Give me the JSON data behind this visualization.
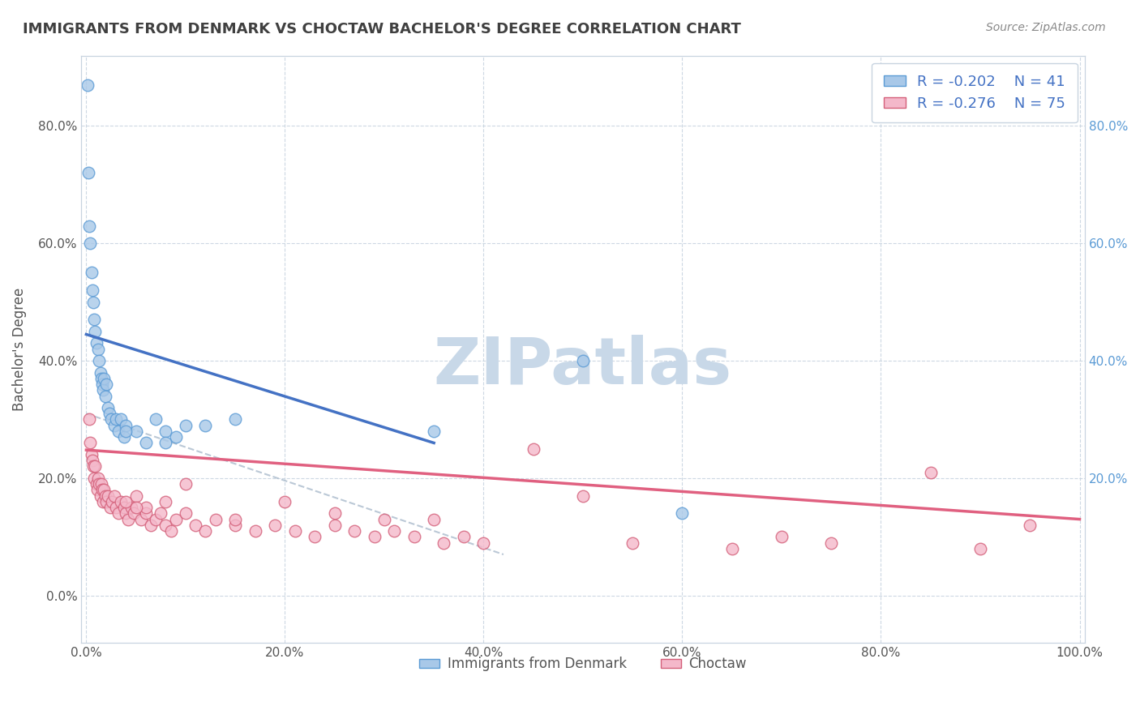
{
  "title": "IMMIGRANTS FROM DENMARK VS CHOCTAW BACHELOR'S DEGREE CORRELATION CHART",
  "source_text": "Source: ZipAtlas.com",
  "xlabel": "",
  "ylabel": "Bachelor's Degree",
  "xlim": [
    -0.005,
    1.005
  ],
  "ylim": [
    -0.08,
    0.92
  ],
  "x_ticks": [
    0.0,
    0.2,
    0.4,
    0.6,
    0.8,
    1.0
  ],
  "x_tick_labels": [
    "0.0%",
    "20.0%",
    "40.0%",
    "60.0%",
    "80.0%",
    "100.0%"
  ],
  "y_ticks": [
    0.0,
    0.2,
    0.4,
    0.6,
    0.8
  ],
  "y_tick_labels": [
    "0.0%",
    "20.0%",
    "40.0%",
    "60.0%",
    "80.0%"
  ],
  "right_y_ticks": [
    0.2,
    0.4,
    0.6,
    0.8
  ],
  "right_y_tick_labels": [
    "20.0%",
    "40.0%",
    "60.0%",
    "80.0%"
  ],
  "series1_color": "#a8c8e8",
  "series1_edge_color": "#5b9bd5",
  "series1_label": "Immigrants from Denmark",
  "series1_R": "-0.202",
  "series1_N": "41",
  "series1_line_color": "#4472c4",
  "series2_color": "#f4b8ca",
  "series2_edge_color": "#d4607a",
  "series2_label": "Choctaw",
  "series2_R": "-0.276",
  "series2_N": "75",
  "series2_line_color": "#e06080",
  "watermark": "ZIPatlas",
  "watermark_color": "#c8d8e8",
  "background_color": "#ffffff",
  "grid_color": "#c8d4e0",
  "title_color": "#404040",
  "series1_x": [
    0.001,
    0.002,
    0.003,
    0.004,
    0.005,
    0.006,
    0.007,
    0.008,
    0.009,
    0.01,
    0.012,
    0.013,
    0.014,
    0.015,
    0.016,
    0.017,
    0.018,
    0.019,
    0.02,
    0.022,
    0.023,
    0.025,
    0.028,
    0.03,
    0.032,
    0.035,
    0.038,
    0.04,
    0.05,
    0.06,
    0.07,
    0.08,
    0.09,
    0.1,
    0.15,
    0.35,
    0.5,
    0.6,
    0.08,
    0.12,
    0.04
  ],
  "series1_y": [
    0.87,
    0.72,
    0.63,
    0.6,
    0.55,
    0.52,
    0.5,
    0.47,
    0.45,
    0.43,
    0.42,
    0.4,
    0.38,
    0.37,
    0.36,
    0.35,
    0.37,
    0.34,
    0.36,
    0.32,
    0.31,
    0.3,
    0.29,
    0.3,
    0.28,
    0.3,
    0.27,
    0.29,
    0.28,
    0.26,
    0.3,
    0.28,
    0.27,
    0.29,
    0.3,
    0.28,
    0.4,
    0.14,
    0.26,
    0.29,
    0.28
  ],
  "series2_x": [
    0.003,
    0.004,
    0.005,
    0.006,
    0.007,
    0.008,
    0.009,
    0.01,
    0.011,
    0.012,
    0.013,
    0.014,
    0.015,
    0.016,
    0.017,
    0.018,
    0.019,
    0.02,
    0.022,
    0.024,
    0.026,
    0.028,
    0.03,
    0.032,
    0.035,
    0.038,
    0.04,
    0.042,
    0.045,
    0.048,
    0.05,
    0.055,
    0.06,
    0.065,
    0.07,
    0.075,
    0.08,
    0.085,
    0.09,
    0.1,
    0.11,
    0.12,
    0.13,
    0.15,
    0.17,
    0.19,
    0.21,
    0.23,
    0.25,
    0.27,
    0.29,
    0.31,
    0.33,
    0.36,
    0.38,
    0.4,
    0.5,
    0.55,
    0.65,
    0.7,
    0.75,
    0.85,
    0.9,
    0.95,
    0.1,
    0.2,
    0.3,
    0.08,
    0.04,
    0.06,
    0.15,
    0.05,
    0.25,
    0.35,
    0.45
  ],
  "series2_y": [
    0.3,
    0.26,
    0.24,
    0.23,
    0.22,
    0.2,
    0.22,
    0.19,
    0.18,
    0.2,
    0.19,
    0.17,
    0.19,
    0.18,
    0.16,
    0.18,
    0.17,
    0.16,
    0.17,
    0.15,
    0.16,
    0.17,
    0.15,
    0.14,
    0.16,
    0.15,
    0.14,
    0.13,
    0.15,
    0.14,
    0.17,
    0.13,
    0.14,
    0.12,
    0.13,
    0.14,
    0.12,
    0.11,
    0.13,
    0.14,
    0.12,
    0.11,
    0.13,
    0.12,
    0.11,
    0.12,
    0.11,
    0.1,
    0.12,
    0.11,
    0.1,
    0.11,
    0.1,
    0.09,
    0.1,
    0.09,
    0.17,
    0.09,
    0.08,
    0.1,
    0.09,
    0.21,
    0.08,
    0.12,
    0.19,
    0.16,
    0.13,
    0.16,
    0.16,
    0.15,
    0.13,
    0.15,
    0.14,
    0.13,
    0.25
  ],
  "blue_line_x": [
    0.0,
    0.35
  ],
  "blue_line_y": [
    0.445,
    0.26
  ],
  "pink_line_x": [
    0.0,
    1.0
  ],
  "pink_line_y": [
    0.248,
    0.13
  ],
  "dash_line_x": [
    0.0,
    0.42
  ],
  "dash_line_y": [
    0.31,
    0.07
  ]
}
